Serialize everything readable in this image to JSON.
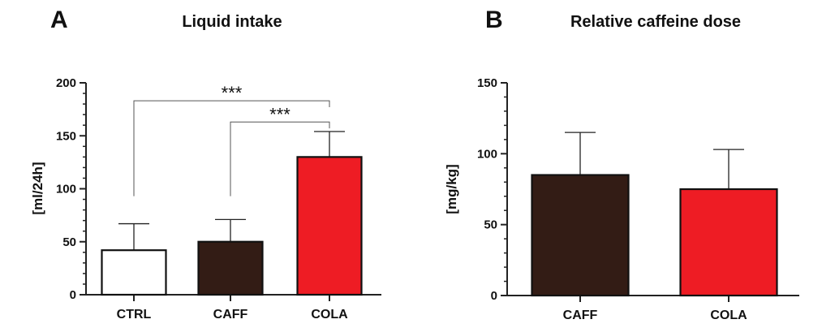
{
  "chart_data": [
    {
      "type": "bar",
      "panel": "A",
      "title": "Liquid intake",
      "ylabel": "[ml/24h]",
      "xlabel": "",
      "ylim": [
        0,
        200
      ],
      "yticks": [
        0,
        50,
        100,
        150,
        200
      ],
      "categories": [
        "CTRL",
        "CAFF",
        "COLA"
      ],
      "values": [
        42,
        50,
        130
      ],
      "errors": [
        25,
        21,
        24
      ],
      "colors": [
        "#ffffff",
        "#331c15",
        "#ee1c24"
      ],
      "significance": [
        {
          "from": "CTRL",
          "to": "COLA",
          "y": 183,
          "drop_from": 93,
          "drop_to": 177,
          "label": "***"
        },
        {
          "from": "CAFF",
          "to": "COLA",
          "y": 163,
          "drop_from": 93,
          "drop_to": 157,
          "label": "***"
        }
      ]
    },
    {
      "type": "bar",
      "panel": "B",
      "title": "Relative caffeine dose",
      "ylabel": "[mg/kg]",
      "xlabel": "",
      "ylim": [
        0,
        150
      ],
      "yticks": [
        0,
        50,
        100,
        150
      ],
      "categories": [
        "CAFF",
        "COLA"
      ],
      "values": [
        85,
        75
      ],
      "errors": [
        30,
        28
      ],
      "colors": [
        "#331c15",
        "#ee1c24"
      ],
      "significance": []
    }
  ]
}
